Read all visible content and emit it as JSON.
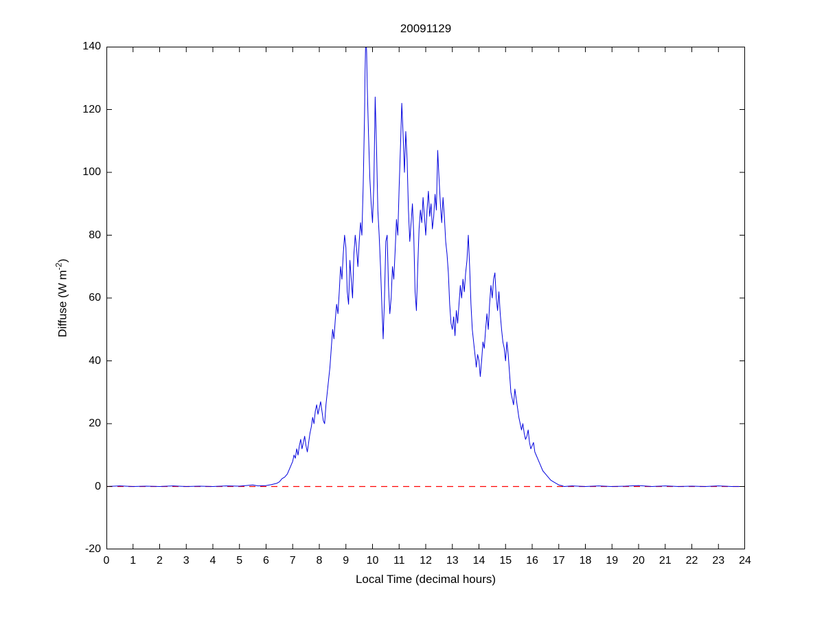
{
  "figure": {
    "title": "20091129",
    "xlabel": "Local Time (decimal hours)",
    "ylabel_pre": "Diffuse (W m",
    "ylabel_sup": "-2",
    "ylabel_post": ")"
  },
  "colors": {
    "line": "#0000dd",
    "reference": "#ff0000",
    "axis": "#000000",
    "background": "#ffffff"
  },
  "chart_data": {
    "type": "line",
    "title": "20091129",
    "xlabel": "Local Time (decimal hours)",
    "ylabel": "Diffuse (W m^-2)",
    "xlim": [
      0,
      24
    ],
    "ylim": [
      -20,
      140
    ],
    "xticks": [
      0,
      1,
      2,
      3,
      4,
      5,
      6,
      7,
      8,
      9,
      10,
      11,
      12,
      13,
      14,
      15,
      16,
      17,
      18,
      19,
      20,
      21,
      22,
      23,
      24
    ],
    "yticks": [
      -20,
      0,
      20,
      40,
      60,
      80,
      100,
      120,
      140
    ],
    "grid": false,
    "legend": null,
    "series": [
      {
        "name": "zero-reference",
        "color": "#ff0000",
        "style": "dashed",
        "y": 0
      },
      {
        "name": "diffuse",
        "color": "#0000dd",
        "style": "solid",
        "points": [
          [
            0,
            0
          ],
          [
            0.5,
            0.2
          ],
          [
            1,
            0
          ],
          [
            1.5,
            0.1
          ],
          [
            2,
            0
          ],
          [
            2.5,
            0.2
          ],
          [
            3,
            0
          ],
          [
            3.5,
            0.1
          ],
          [
            4,
            0
          ],
          [
            4.5,
            0.2
          ],
          [
            5,
            0.1
          ],
          [
            5.5,
            0.5
          ],
          [
            5.7,
            0.2
          ],
          [
            6.0,
            0.3
          ],
          [
            6.2,
            0.6
          ],
          [
            6.4,
            1
          ],
          [
            6.5,
            1.5
          ],
          [
            6.6,
            2.5
          ],
          [
            6.7,
            3
          ],
          [
            6.8,
            4
          ],
          [
            6.9,
            6
          ],
          [
            7.0,
            8
          ],
          [
            7.05,
            10
          ],
          [
            7.1,
            9
          ],
          [
            7.15,
            12
          ],
          [
            7.2,
            10
          ],
          [
            7.25,
            13
          ],
          [
            7.3,
            15
          ],
          [
            7.35,
            12
          ],
          [
            7.4,
            14
          ],
          [
            7.45,
            16
          ],
          [
            7.5,
            13
          ],
          [
            7.55,
            11
          ],
          [
            7.6,
            14
          ],
          [
            7.65,
            17
          ],
          [
            7.7,
            19
          ],
          [
            7.75,
            22
          ],
          [
            7.8,
            20
          ],
          [
            7.85,
            24
          ],
          [
            7.9,
            26
          ],
          [
            7.95,
            23
          ],
          [
            8.0,
            25
          ],
          [
            8.05,
            27
          ],
          [
            8.1,
            24
          ],
          [
            8.15,
            21
          ],
          [
            8.2,
            20
          ],
          [
            8.25,
            26
          ],
          [
            8.3,
            30
          ],
          [
            8.35,
            34
          ],
          [
            8.4,
            38
          ],
          [
            8.45,
            44
          ],
          [
            8.5,
            50
          ],
          [
            8.55,
            47
          ],
          [
            8.6,
            53
          ],
          [
            8.65,
            58
          ],
          [
            8.7,
            55
          ],
          [
            8.75,
            62
          ],
          [
            8.8,
            70
          ],
          [
            8.85,
            66
          ],
          [
            8.9,
            74
          ],
          [
            8.95,
            80
          ],
          [
            9.0,
            76
          ],
          [
            9.05,
            62
          ],
          [
            9.1,
            58
          ],
          [
            9.15,
            72
          ],
          [
            9.2,
            66
          ],
          [
            9.25,
            60
          ],
          [
            9.3,
            74
          ],
          [
            9.35,
            80
          ],
          [
            9.4,
            76
          ],
          [
            9.45,
            70
          ],
          [
            9.5,
            78
          ],
          [
            9.55,
            84
          ],
          [
            9.6,
            80
          ],
          [
            9.65,
            96
          ],
          [
            9.7,
            118
          ],
          [
            9.72,
            132
          ],
          [
            9.75,
            145
          ],
          [
            9.78,
            138
          ],
          [
            9.8,
            128
          ],
          [
            9.85,
            112
          ],
          [
            9.9,
            98
          ],
          [
            9.95,
            90
          ],
          [
            10.0,
            84
          ],
          [
            10.05,
            96
          ],
          [
            10.1,
            124
          ],
          [
            10.15,
            108
          ],
          [
            10.2,
            88
          ],
          [
            10.25,
            80
          ],
          [
            10.3,
            70
          ],
          [
            10.35,
            58
          ],
          [
            10.4,
            47
          ],
          [
            10.45,
            60
          ],
          [
            10.5,
            78
          ],
          [
            10.55,
            80
          ],
          [
            10.6,
            64
          ],
          [
            10.65,
            55
          ],
          [
            10.7,
            60
          ],
          [
            10.75,
            70
          ],
          [
            10.8,
            66
          ],
          [
            10.85,
            75
          ],
          [
            10.9,
            85
          ],
          [
            10.95,
            80
          ],
          [
            11.0,
            95
          ],
          [
            11.05,
            108
          ],
          [
            11.1,
            122
          ],
          [
            11.15,
            112
          ],
          [
            11.2,
            100
          ],
          [
            11.25,
            113
          ],
          [
            11.3,
            104
          ],
          [
            11.35,
            88
          ],
          [
            11.4,
            78
          ],
          [
            11.45,
            84
          ],
          [
            11.5,
            90
          ],
          [
            11.55,
            80
          ],
          [
            11.6,
            62
          ],
          [
            11.65,
            56
          ],
          [
            11.7,
            70
          ],
          [
            11.75,
            82
          ],
          [
            11.8,
            88
          ],
          [
            11.85,
            84
          ],
          [
            11.9,
            92
          ],
          [
            11.95,
            86
          ],
          [
            12.0,
            80
          ],
          [
            12.05,
            88
          ],
          [
            12.1,
            94
          ],
          [
            12.15,
            86
          ],
          [
            12.2,
            90
          ],
          [
            12.25,
            82
          ],
          [
            12.3,
            86
          ],
          [
            12.35,
            93
          ],
          [
            12.4,
            88
          ],
          [
            12.45,
            107
          ],
          [
            12.5,
            98
          ],
          [
            12.55,
            90
          ],
          [
            12.6,
            84
          ],
          [
            12.65,
            92
          ],
          [
            12.7,
            86
          ],
          [
            12.75,
            78
          ],
          [
            12.8,
            74
          ],
          [
            12.85,
            68
          ],
          [
            12.9,
            58
          ],
          [
            12.95,
            52
          ],
          [
            13.0,
            50
          ],
          [
            13.05,
            54
          ],
          [
            13.1,
            48
          ],
          [
            13.15,
            56
          ],
          [
            13.2,
            52
          ],
          [
            13.25,
            58
          ],
          [
            13.3,
            64
          ],
          [
            13.35,
            60
          ],
          [
            13.4,
            66
          ],
          [
            13.45,
            62
          ],
          [
            13.5,
            68
          ],
          [
            13.55,
            72
          ],
          [
            13.6,
            80
          ],
          [
            13.65,
            70
          ],
          [
            13.7,
            58
          ],
          [
            13.75,
            50
          ],
          [
            13.8,
            46
          ],
          [
            13.85,
            42
          ],
          [
            13.9,
            38
          ],
          [
            13.95,
            42
          ],
          [
            14.0,
            40
          ],
          [
            14.05,
            35
          ],
          [
            14.1,
            40
          ],
          [
            14.15,
            46
          ],
          [
            14.2,
            44
          ],
          [
            14.25,
            50
          ],
          [
            14.3,
            55
          ],
          [
            14.35,
            50
          ],
          [
            14.4,
            58
          ],
          [
            14.45,
            64
          ],
          [
            14.5,
            60
          ],
          [
            14.55,
            66
          ],
          [
            14.6,
            68
          ],
          [
            14.65,
            60
          ],
          [
            14.7,
            56
          ],
          [
            14.75,
            62
          ],
          [
            14.8,
            55
          ],
          [
            14.85,
            50
          ],
          [
            14.9,
            46
          ],
          [
            14.95,
            44
          ],
          [
            15.0,
            40
          ],
          [
            15.05,
            46
          ],
          [
            15.1,
            42
          ],
          [
            15.15,
            36
          ],
          [
            15.2,
            30
          ],
          [
            15.25,
            28
          ],
          [
            15.3,
            26
          ],
          [
            15.35,
            31
          ],
          [
            15.4,
            28
          ],
          [
            15.45,
            25
          ],
          [
            15.5,
            22
          ],
          [
            15.55,
            20
          ],
          [
            15.6,
            18
          ],
          [
            15.65,
            20
          ],
          [
            15.7,
            17
          ],
          [
            15.75,
            15
          ],
          [
            15.8,
            16
          ],
          [
            15.85,
            18
          ],
          [
            15.9,
            14
          ],
          [
            15.95,
            12
          ],
          [
            16.0,
            13
          ],
          [
            16.05,
            14
          ],
          [
            16.1,
            11
          ],
          [
            16.15,
            10
          ],
          [
            16.2,
            9
          ],
          [
            16.3,
            7
          ],
          [
            16.4,
            5
          ],
          [
            16.5,
            4
          ],
          [
            16.6,
            3
          ],
          [
            16.7,
            2
          ],
          [
            16.8,
            1.5
          ],
          [
            16.9,
            1
          ],
          [
            17.0,
            0.5
          ],
          [
            17.1,
            0.3
          ],
          [
            17.2,
            0
          ],
          [
            17.5,
            0.2
          ],
          [
            18,
            0
          ],
          [
            18.5,
            0.2
          ],
          [
            19,
            0
          ],
          [
            19.5,
            0.1
          ],
          [
            20,
            0.3
          ],
          [
            20.5,
            0
          ],
          [
            21,
            0.2
          ],
          [
            21.5,
            0
          ],
          [
            22,
            0.1
          ],
          [
            22.5,
            0
          ],
          [
            23,
            0.2
          ],
          [
            23.5,
            0
          ],
          [
            24,
            0
          ]
        ]
      }
    ]
  }
}
